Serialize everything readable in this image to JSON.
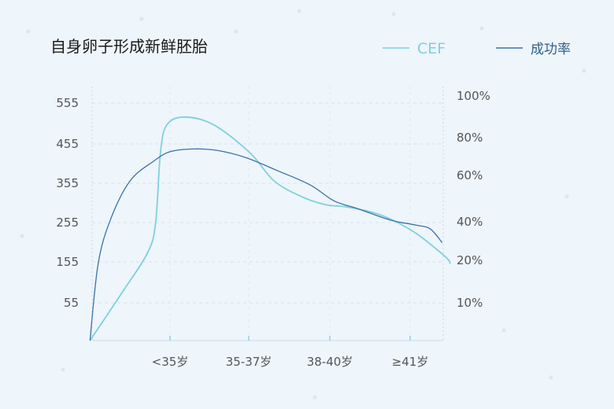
{
  "chart_data": {
    "type": "line",
    "title": "自身卵子形成新鲜胚胎",
    "categories": [
      "<35岁",
      "35-37岁",
      "38-40岁",
      "≥41岁"
    ],
    "y_left": {
      "ticks": [
        "555",
        "455",
        "355",
        "255",
        "155",
        "55"
      ],
      "tick_values": [
        555,
        455,
        355,
        255,
        155,
        55
      ],
      "range": [
        -40,
        560
      ]
    },
    "y_right": {
      "ticks": [
        "100%",
        "80%",
        "60%",
        "40%",
        "20%",
        "10%"
      ],
      "tick_values": [
        100,
        80,
        60,
        40,
        20,
        10
      ]
    },
    "grid": true,
    "legend_position": "top-right",
    "series": [
      {
        "name": "CEF",
        "axis": "left",
        "color": "#7fd0dc",
        "points": [
          [
            -1.0,
            -40
          ],
          [
            -0.6,
            80
          ],
          [
            -0.28,
            180
          ],
          [
            -0.18,
            255
          ],
          [
            -0.12,
            430
          ],
          [
            -0.04,
            500
          ],
          [
            0.18,
            520
          ],
          [
            0.55,
            500
          ],
          [
            1.0,
            430
          ],
          [
            1.3,
            360
          ],
          [
            1.65,
            320
          ],
          [
            1.95,
            300
          ],
          [
            2.2,
            295
          ],
          [
            2.55,
            280
          ],
          [
            2.8,
            260
          ],
          [
            3.1,
            225
          ],
          [
            3.45,
            168
          ],
          [
            3.5,
            152
          ]
        ]
      },
      {
        "name": "成功率",
        "axis": "left",
        "color": "#3a72a8",
        "points": [
          [
            -1.0,
            -40
          ],
          [
            -0.9,
            150
          ],
          [
            -0.75,
            260
          ],
          [
            -0.5,
            360
          ],
          [
            -0.2,
            410
          ],
          [
            0.0,
            433
          ],
          [
            0.3,
            440
          ],
          [
            0.6,
            436
          ],
          [
            0.95,
            418
          ],
          [
            1.35,
            385
          ],
          [
            1.75,
            350
          ],
          [
            2.05,
            310
          ],
          [
            2.35,
            290
          ],
          [
            2.75,
            262
          ],
          [
            3.05,
            250
          ],
          [
            3.25,
            240
          ],
          [
            3.4,
            205
          ]
        ]
      }
    ]
  }
}
